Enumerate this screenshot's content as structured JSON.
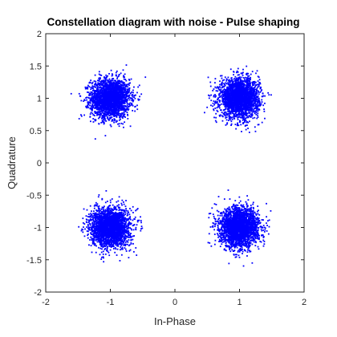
{
  "chart_data": {
    "type": "scatter",
    "title": "Constellation diagram with noise - Pulse shaping",
    "xlabel": "In-Phase",
    "ylabel": "Quadrature",
    "xlim": [
      -2,
      2
    ],
    "ylim": [
      -2,
      2
    ],
    "xticks": [
      -2,
      -1,
      0,
      1,
      2
    ],
    "yticks": [
      -2,
      -1.5,
      -1,
      -0.5,
      0,
      0.5,
      1,
      1.5,
      2
    ],
    "xtick_labels": [
      "-2",
      "-1",
      "0",
      "1",
      "2"
    ],
    "ytick_labels": [
      "-2",
      "-1.5",
      "-1",
      "-0.5",
      "0",
      "0.5",
      "1",
      "1.5",
      "2"
    ],
    "grid": false,
    "marker_color": "#0000ff",
    "series": [
      {
        "symbols": [
          {
            "x": -1,
            "y": 1
          },
          {
            "x": 1,
            "y": 1
          },
          {
            "x": -1,
            "y": -1
          },
          {
            "x": 1,
            "y": -1
          }
        ],
        "noise_std": 0.15,
        "points_per_symbol": 2500
      }
    ]
  }
}
